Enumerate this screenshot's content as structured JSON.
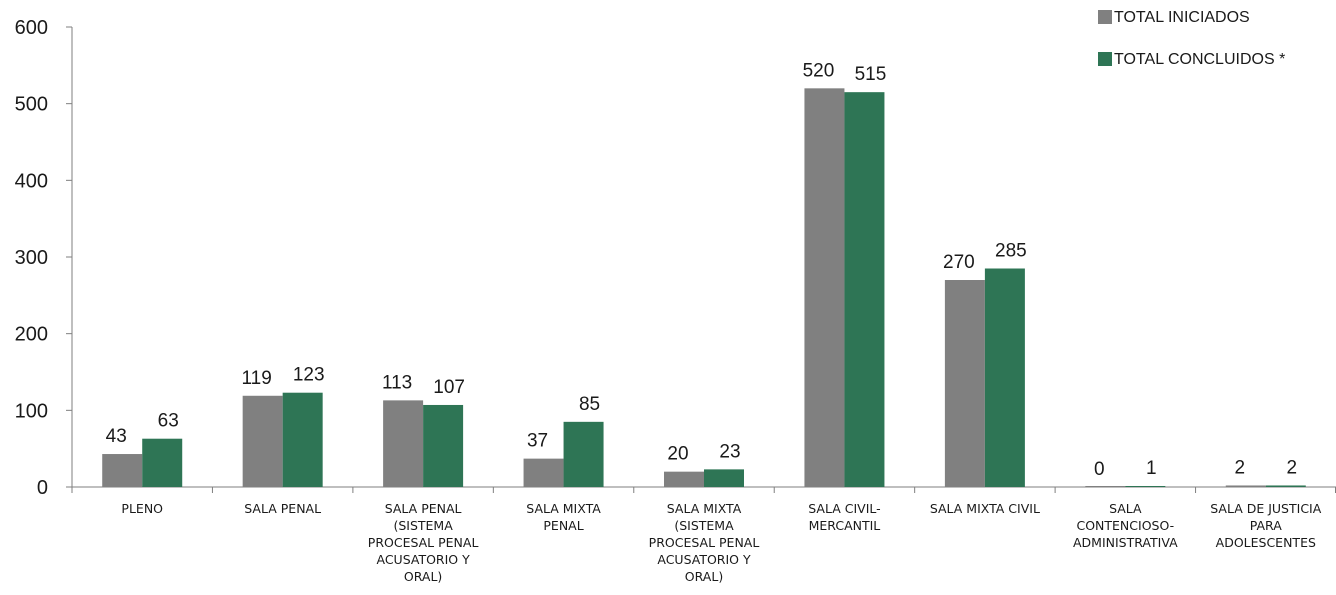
{
  "chart_data": {
    "type": "bar",
    "categories": [
      [
        "PLENO"
      ],
      [
        "SALA PENAL"
      ],
      [
        "SALA PENAL",
        "(SISTEMA",
        "PROCESAL PENAL",
        "ACUSATORIO Y",
        "ORAL)"
      ],
      [
        "SALA MIXTA",
        "PENAL"
      ],
      [
        "SALA MIXTA",
        "(SISTEMA",
        "PROCESAL PENAL",
        "ACUSATORIO Y",
        "ORAL)"
      ],
      [
        "SALA CIVIL-",
        "MERCANTIL"
      ],
      [
        "SALA MIXTA CIVIL"
      ],
      [
        "SALA",
        "CONTENCIOSO-",
        "ADMINISTRATIVA"
      ],
      [
        "SALA DE JUSTICIA",
        "PARA",
        "ADOLESCENTES"
      ]
    ],
    "series": [
      {
        "name": "TOTAL INICIADOS",
        "color": "#808080",
        "values": [
          43,
          119,
          113,
          37,
          20,
          520,
          270,
          0,
          2
        ]
      },
      {
        "name": "TOTAL CONCLUIDOS *",
        "color": "#2e7555",
        "values": [
          63,
          123,
          107,
          85,
          23,
          515,
          285,
          1,
          2
        ]
      }
    ],
    "ylim": [
      0,
      600
    ],
    "yticks": [
      "0",
      "100",
      "200",
      "300",
      "400",
      "500",
      "600"
    ],
    "legend_position": "top-right",
    "grid": false
  }
}
